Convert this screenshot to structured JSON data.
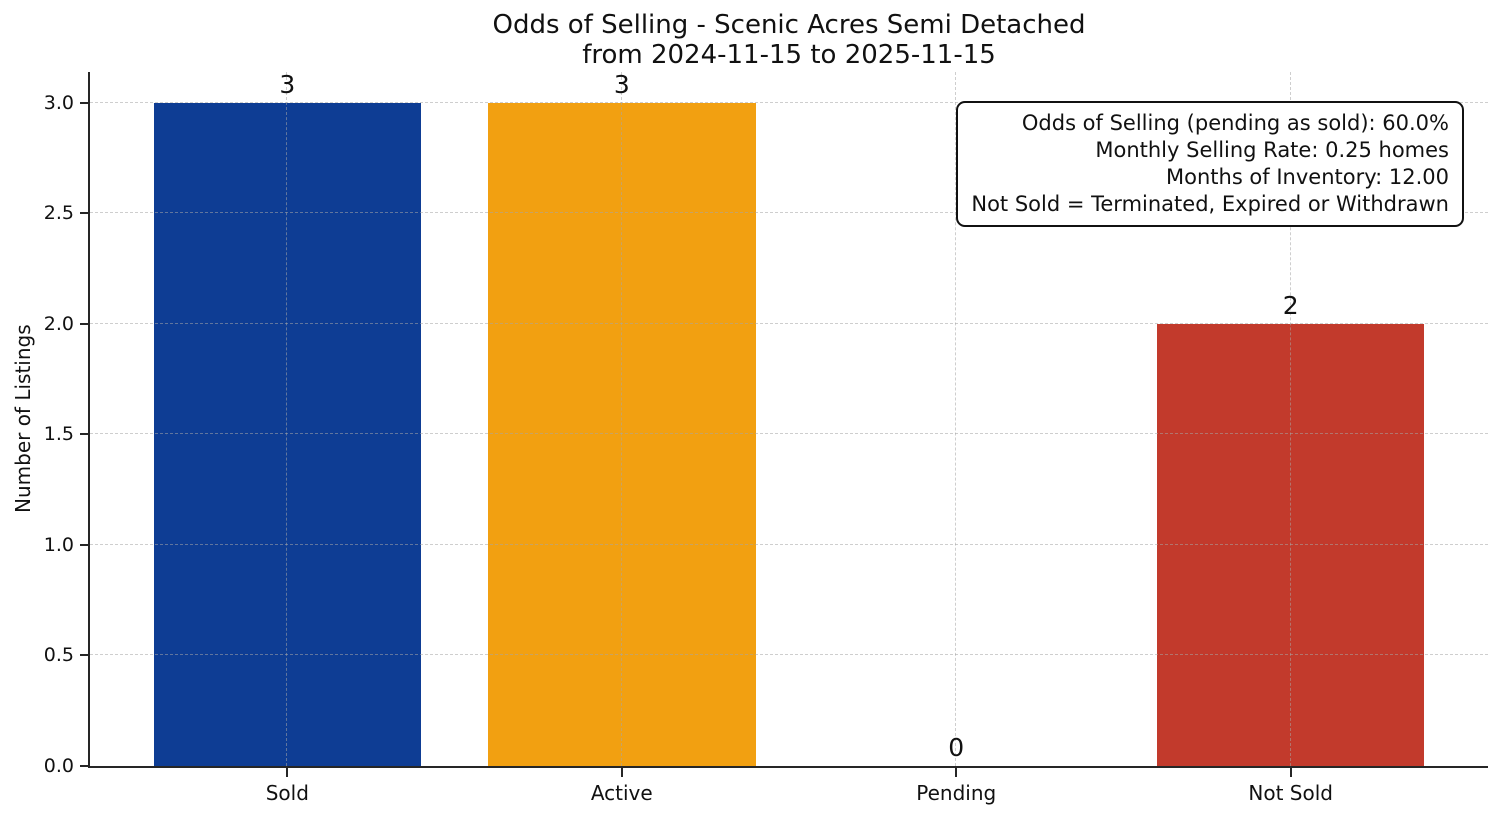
{
  "chart_data": {
    "type": "bar",
    "title_lines": [
      "Odds of Selling - Scenic Acres Semi Detached",
      "from 2024-11-15 to 2025-11-15"
    ],
    "ylabel": "Number of Listings",
    "xlabel": "",
    "categories": [
      "Sold",
      "Active",
      "Pending",
      "Not Sold"
    ],
    "values": [
      3,
      3,
      0,
      2
    ],
    "value_labels": [
      "3",
      "3",
      "0",
      "2"
    ],
    "bar_colors": [
      "#0e3d94",
      "#f2a011",
      null,
      "#c23a2c"
    ],
    "yticks": [
      0,
      0.5,
      1,
      1.5,
      2,
      2.5,
      3
    ],
    "ytick_labels": [
      "0.0",
      "0.5",
      "1.0",
      "1.5",
      "2.0",
      "2.5",
      "3.0"
    ],
    "ylim": [
      0,
      3.14
    ],
    "xlim": [
      -0.59,
      3.59
    ],
    "bar_width_units": 0.8,
    "grid": {
      "style": "dashed",
      "axes": "both"
    },
    "legend": null,
    "annotation": {
      "lines": [
        "Odds of Selling (pending as sold): 60.0%",
        "Monthly Selling Rate: 0.25 homes",
        "Months of Inventory: 12.00",
        "Not Sold = Terminated, Expired or Withdrawn"
      ]
    }
  }
}
